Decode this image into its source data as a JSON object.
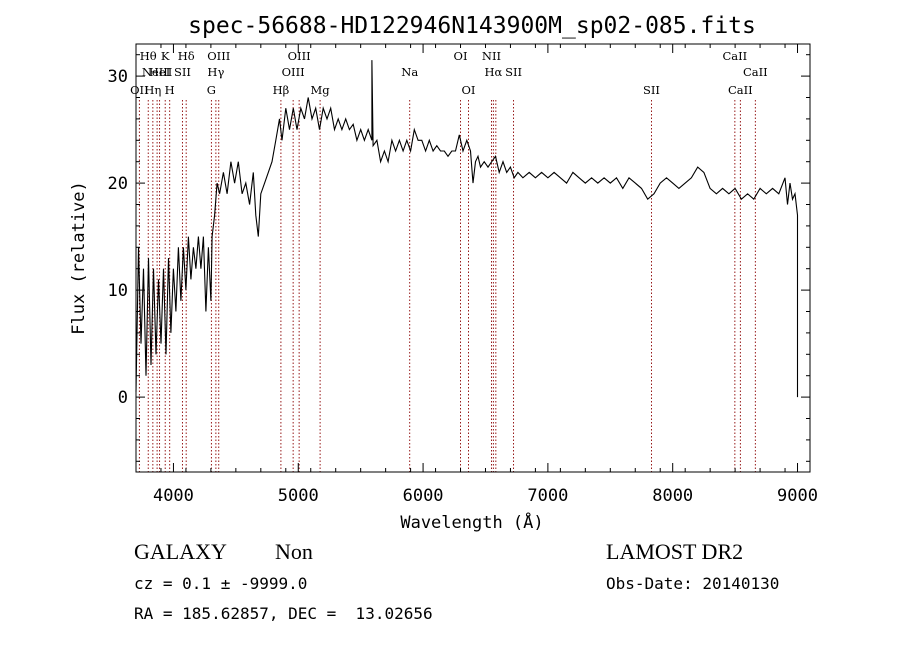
{
  "chart_data": {
    "type": "line",
    "title": "spec-56688-HD122946N143900M_sp02-085.fits",
    "xlabel": "Wavelength (Å)",
    "ylabel": "Flux (relative)",
    "xlim": [
      3700,
      9100
    ],
    "ylim": [
      -7,
      33
    ],
    "xticks": [
      4000,
      5000,
      6000,
      7000,
      8000,
      9000
    ],
    "yticks": [
      0,
      10,
      20,
      30
    ],
    "grid": false,
    "series": [
      {
        "points": [
          [
            3700,
            0.5
          ],
          [
            3720,
            14
          ],
          [
            3740,
            5
          ],
          [
            3760,
            12
          ],
          [
            3780,
            2
          ],
          [
            3800,
            13
          ],
          [
            3820,
            3
          ],
          [
            3840,
            12
          ],
          [
            3860,
            4
          ],
          [
            3880,
            11
          ],
          [
            3900,
            5
          ],
          [
            3920,
            12
          ],
          [
            3940,
            4
          ],
          [
            3960,
            13
          ],
          [
            3980,
            6
          ],
          [
            4000,
            12
          ],
          [
            4020,
            8
          ],
          [
            4040,
            14
          ],
          [
            4060,
            9
          ],
          [
            4080,
            14
          ],
          [
            4100,
            10
          ],
          [
            4120,
            15
          ],
          [
            4140,
            11
          ],
          [
            4160,
            14
          ],
          [
            4180,
            12
          ],
          [
            4200,
            15
          ],
          [
            4220,
            12
          ],
          [
            4240,
            15
          ],
          [
            4260,
            8
          ],
          [
            4280,
            14
          ],
          [
            4300,
            9
          ],
          [
            4310,
            15
          ],
          [
            4330,
            17
          ],
          [
            4350,
            20
          ],
          [
            4370,
            19
          ],
          [
            4400,
            21
          ],
          [
            4430,
            19
          ],
          [
            4460,
            22
          ],
          [
            4490,
            20
          ],
          [
            4520,
            22
          ],
          [
            4550,
            19
          ],
          [
            4580,
            20
          ],
          [
            4610,
            18
          ],
          [
            4640,
            21
          ],
          [
            4660,
            17
          ],
          [
            4680,
            15
          ],
          [
            4700,
            19
          ],
          [
            4730,
            20
          ],
          [
            4760,
            21
          ],
          [
            4790,
            22
          ],
          [
            4820,
            24
          ],
          [
            4850,
            26
          ],
          [
            4870,
            24
          ],
          [
            4900,
            27
          ],
          [
            4930,
            25
          ],
          [
            4960,
            27
          ],
          [
            4990,
            25
          ],
          [
            5020,
            27
          ],
          [
            5050,
            26
          ],
          [
            5080,
            28
          ],
          [
            5110,
            26
          ],
          [
            5140,
            27
          ],
          [
            5170,
            25
          ],
          [
            5200,
            27
          ],
          [
            5230,
            26
          ],
          [
            5260,
            27
          ],
          [
            5290,
            25
          ],
          [
            5320,
            26
          ],
          [
            5350,
            25
          ],
          [
            5380,
            26
          ],
          [
            5410,
            25
          ],
          [
            5440,
            25.5
          ],
          [
            5470,
            24
          ],
          [
            5500,
            25
          ],
          [
            5530,
            24
          ],
          [
            5560,
            25
          ],
          [
            5590,
            24
          ],
          [
            5590,
            31.5
          ],
          [
            5600,
            23.5
          ],
          [
            5630,
            24
          ],
          [
            5660,
            22
          ],
          [
            5690,
            23
          ],
          [
            5720,
            22
          ],
          [
            5750,
            24
          ],
          [
            5780,
            23
          ],
          [
            5810,
            24
          ],
          [
            5840,
            23
          ],
          [
            5870,
            24
          ],
          [
            5900,
            23
          ],
          [
            5930,
            25
          ],
          [
            5960,
            24
          ],
          [
            5990,
            24
          ],
          [
            6020,
            23
          ],
          [
            6050,
            24
          ],
          [
            6080,
            23
          ],
          [
            6110,
            23.5
          ],
          [
            6140,
            23
          ],
          [
            6170,
            23
          ],
          [
            6200,
            22.5
          ],
          [
            6230,
            23
          ],
          [
            6260,
            23
          ],
          [
            6290,
            24.5
          ],
          [
            6320,
            23
          ],
          [
            6350,
            24
          ],
          [
            6380,
            23
          ],
          [
            6400,
            20
          ],
          [
            6420,
            22
          ],
          [
            6440,
            22.5
          ],
          [
            6460,
            21.5
          ],
          [
            6490,
            22
          ],
          [
            6520,
            21.5
          ],
          [
            6550,
            22
          ],
          [
            6580,
            22.5
          ],
          [
            6610,
            21
          ],
          [
            6640,
            22
          ],
          [
            6670,
            21
          ],
          [
            6700,
            21.5
          ],
          [
            6730,
            20.5
          ],
          [
            6760,
            21
          ],
          [
            6800,
            20.5
          ],
          [
            6850,
            21
          ],
          [
            6900,
            20.5
          ],
          [
            6950,
            21
          ],
          [
            7000,
            20.5
          ],
          [
            7050,
            21
          ],
          [
            7100,
            20.5
          ],
          [
            7150,
            20
          ],
          [
            7200,
            21
          ],
          [
            7250,
            20.5
          ],
          [
            7300,
            20
          ],
          [
            7350,
            20.5
          ],
          [
            7400,
            20
          ],
          [
            7450,
            20.5
          ],
          [
            7500,
            20
          ],
          [
            7550,
            20.5
          ],
          [
            7600,
            19.5
          ],
          [
            7650,
            20.5
          ],
          [
            7700,
            20
          ],
          [
            7750,
            19.5
          ],
          [
            7800,
            18.5
          ],
          [
            7850,
            19
          ],
          [
            7900,
            20
          ],
          [
            7950,
            20.5
          ],
          [
            8000,
            20
          ],
          [
            8050,
            19.5
          ],
          [
            8100,
            20
          ],
          [
            8150,
            20.5
          ],
          [
            8200,
            21.5
          ],
          [
            8250,
            21
          ],
          [
            8300,
            19.5
          ],
          [
            8350,
            19
          ],
          [
            8400,
            19.5
          ],
          [
            8450,
            19
          ],
          [
            8500,
            19.5
          ],
          [
            8550,
            18.5
          ],
          [
            8600,
            19
          ],
          [
            8650,
            18.5
          ],
          [
            8700,
            19.5
          ],
          [
            8750,
            19
          ],
          [
            8800,
            19.5
          ],
          [
            8850,
            19
          ],
          [
            8900,
            20.5
          ],
          [
            8920,
            18
          ],
          [
            8940,
            20
          ],
          [
            8960,
            18.5
          ],
          [
            8980,
            19
          ],
          [
            9000,
            17
          ],
          [
            9000,
            0
          ]
        ]
      }
    ],
    "lines": [
      {
        "wl": 3727,
        "labels": [
          "OII"
        ],
        "rows": [
          3
        ]
      },
      {
        "wl": 3798,
        "labels": [
          "Hθ"
        ],
        "rows": [
          1
        ]
      },
      {
        "wl": 3835,
        "labels": [
          "Hη"
        ],
        "rows": [
          3
        ]
      },
      {
        "wl": 3869,
        "labels": [
          "NeIII"
        ],
        "rows": [
          2
        ]
      },
      {
        "wl": 3889,
        "labels": [
          "HeI"
        ],
        "rows": [
          2
        ]
      },
      {
        "wl": 3934,
        "labels": [
          "K"
        ],
        "rows": [
          1
        ]
      },
      {
        "wl": 3970,
        "labels": [
          "H"
        ],
        "rows": [
          3
        ]
      },
      {
        "wl": 4072,
        "labels": [
          "SII"
        ],
        "rows": [
          2
        ]
      },
      {
        "wl": 4102,
        "labels": [
          "Hδ"
        ],
        "rows": [
          1
        ]
      },
      {
        "wl": 4304,
        "labels": [
          "G"
        ],
        "rows": [
          3
        ]
      },
      {
        "wl": 4340,
        "labels": [
          "Hγ"
        ],
        "rows": [
          2
        ]
      },
      {
        "wl": 4363,
        "labels": [
          "OIII"
        ],
        "rows": [
          1
        ]
      },
      {
        "wl": 4861,
        "labels": [
          "Hβ"
        ],
        "rows": [
          3
        ]
      },
      {
        "wl": 4959,
        "labels": [
          "OIII"
        ],
        "rows": [
          2
        ]
      },
      {
        "wl": 5007,
        "labels": [
          "OIII"
        ],
        "rows": [
          1
        ]
      },
      {
        "wl": 5175,
        "labels": [
          "Mg"
        ],
        "rows": [
          3
        ]
      },
      {
        "wl": 5893,
        "labels": [
          "Na"
        ],
        "rows": [
          2
        ]
      },
      {
        "wl": 6300,
        "labels": [
          "OI"
        ],
        "rows": [
          1
        ]
      },
      {
        "wl": 6364,
        "labels": [
          "OI"
        ],
        "rows": [
          3
        ]
      },
      {
        "wl": 6548,
        "labels": [
          "NII"
        ],
        "rows": [
          1
        ]
      },
      {
        "wl": 6563,
        "labels": [
          "Hα"
        ],
        "rows": [
          2
        ]
      },
      {
        "wl": 6583,
        "labels": [
          "NII"
        ],
        "rows": []
      },
      {
        "wl": 6725,
        "labels": [
          "SII"
        ],
        "rows": [
          2
        ]
      },
      {
        "wl": 7830,
        "labels": [
          "SII"
        ],
        "rows": [
          3
        ]
      },
      {
        "wl": 8498,
        "labels": [
          "CaII"
        ],
        "rows": [
          1
        ]
      },
      {
        "wl": 8542,
        "labels": [
          "CaII"
        ],
        "rows": [
          3
        ]
      },
      {
        "wl": 8662,
        "labels": [
          "CaII"
        ],
        "rows": [
          2
        ]
      }
    ]
  },
  "info": {
    "class_label": "GALAXY",
    "subclass_label": "Non",
    "survey": "LAMOST DR2",
    "cz": "cz = 0.1 ± -9999.0",
    "obs_date": "Obs-Date: 20140130",
    "coords": "RA = 185.62857, DEC =  13.02656"
  },
  "colors": {
    "spectrum": "#000000",
    "line_markers": "#8b0000"
  }
}
